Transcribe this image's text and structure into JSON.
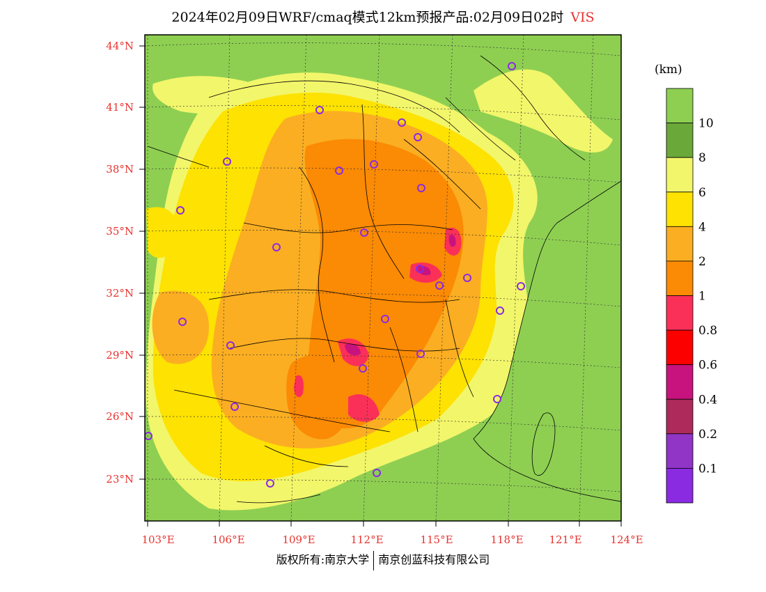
{
  "title": {
    "text": "2024年02月09日WRF/cmaq模式12km预报产品:02月09日02时",
    "variable": "VIS"
  },
  "axes": {
    "latitude_labels": [
      "44°N",
      "41°N",
      "38°N",
      "35°N",
      "32°N",
      "29°N",
      "26°N",
      "23°N"
    ],
    "longitude_labels": [
      "103°E",
      "106°E",
      "109°E",
      "112°E",
      "115°E",
      "118°E",
      "121°E",
      "124°E"
    ]
  },
  "legend": {
    "unit": "(km)",
    "labels": [
      "10",
      "8",
      "6",
      "4",
      "2",
      "1",
      "0.8",
      "0.6",
      "0.4",
      "0.2",
      "0.1"
    ],
    "colors": [
      "#8ecf52",
      "#6aa83a",
      "#f2f66a",
      "#fde202",
      "#fbae22",
      "#fb8a04",
      "#fb3058",
      "#fc0000",
      "#c8137e",
      "#ad2a5a",
      "#9035c6",
      "#8a2be2"
    ]
  },
  "footer": {
    "left": "版权所有:南京大学",
    "right": "南京创蓝科技有限公司"
  },
  "colors": {
    "background_land": "#8ecf52",
    "label_red": "#e8322e",
    "station_marker": "#8a2be2"
  }
}
